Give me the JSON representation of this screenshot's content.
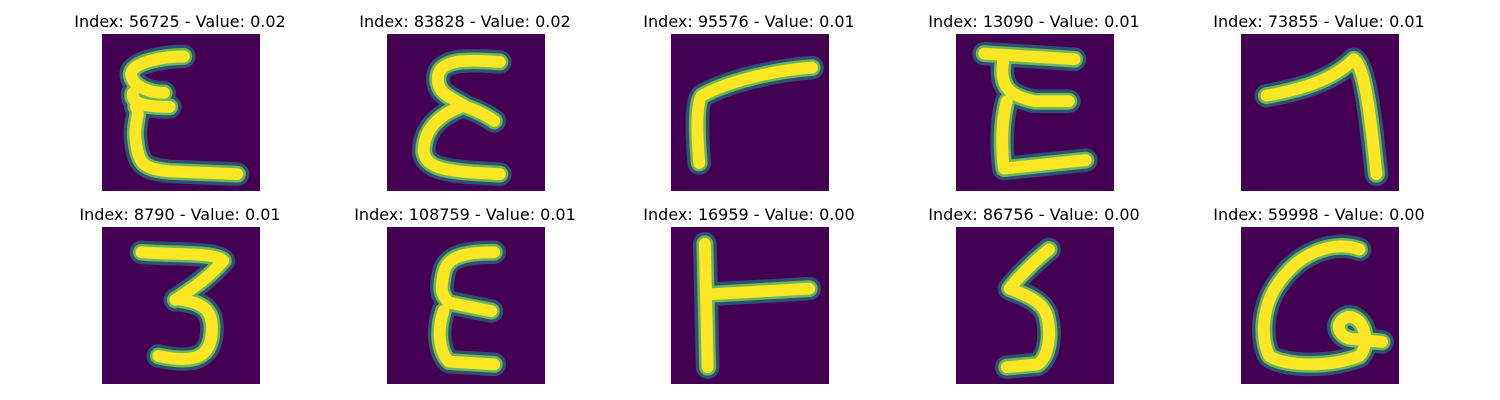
{
  "colors": {
    "background": "#440154",
    "glow": "#21918c",
    "mid": "#7ad151",
    "stroke": "#fde725"
  },
  "panels": [
    {
      "title": "Index: 56725 - Value: 0.02",
      "glyph": "E"
    },
    {
      "title": "Index: 83828 - Value: 0.02",
      "glyph": "epsilon"
    },
    {
      "title": "Index: 95576 - Value: 0.01",
      "glyph": "corner"
    },
    {
      "title": "Index: 13090 - Value: 0.01",
      "glyph": "E"
    },
    {
      "title": "Index: 73855 - Value: 0.01",
      "glyph": "one"
    },
    {
      "title": "Index: 8790 - Value: 0.01",
      "glyph": "three"
    },
    {
      "title": "Index: 108759 - Value: 0.01",
      "glyph": "epsilon"
    },
    {
      "title": "Index: 16959 - Value: 0.00",
      "glyph": "T"
    },
    {
      "title": "Index: 86756 - Value: 0.00",
      "glyph": "five"
    },
    {
      "title": "Index: 59998 - Value: 0.00",
      "glyph": "a"
    }
  ]
}
